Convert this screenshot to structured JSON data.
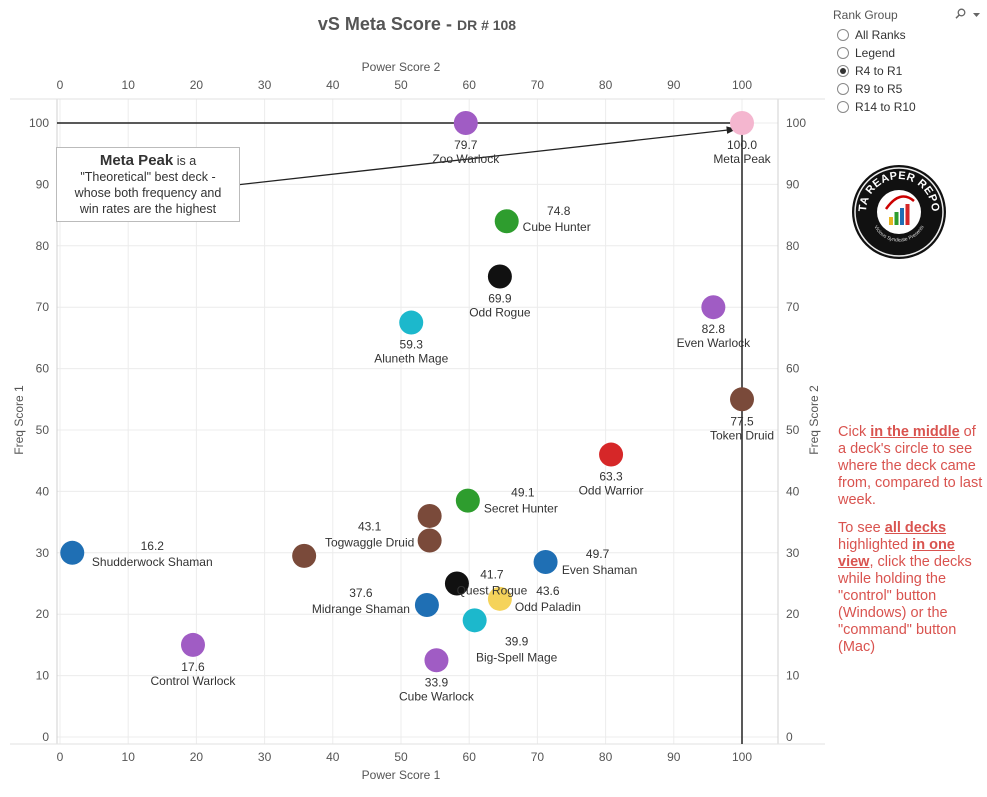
{
  "title": {
    "main": "vS Meta Score",
    "sep": " - ",
    "sub": "DR # 108"
  },
  "colors": {
    "red_text": "#d9534f"
  },
  "filter": {
    "title": "Rank Group",
    "search_icon": "search-icon",
    "menu_icon": "dropdown-caret-icon",
    "options": [
      {
        "label": "All Ranks",
        "selected": false
      },
      {
        "label": "Legend",
        "selected": false
      },
      {
        "label": "R4 to R1",
        "selected": true
      },
      {
        "label": "R9 to R5",
        "selected": false
      },
      {
        "label": "R14 to R10",
        "selected": false
      }
    ]
  },
  "logo": {
    "text": "DATA REAPER REPORT",
    "subtext": "Vicious Syndicate Presents"
  },
  "annotation": {
    "bold": "Meta Peak",
    "line1_rest": " is a",
    "line2": "\"Theoretical\" best deck -",
    "line3": "whose both frequency and",
    "line4": "win rates are the highest"
  },
  "help": {
    "p1_before": "Cick ",
    "p1_bold": "in the middle",
    "p1_after": " of a deck's circle to see where the deck came from, compared to last week.",
    "p2_before": "To see ",
    "p2_bold1": "all decks ",
    "p2_mid": " highlighted ",
    "p2_bold2": "in one view",
    "p2_after": ", click the decks while holding the \"control\" button (Windows) or the \"command\" button (Mac)"
  },
  "chart_data": {
    "type": "scatter",
    "title": "vS Meta Score - DR # 108",
    "xlabel": "Power Score 1",
    "xlabel_top": "Power Score 2",
    "ylabel": "Freq Score 1",
    "ylabel_right": "Freq Score 2",
    "xlim": [
      0,
      105
    ],
    "ylim": [
      -2,
      105
    ],
    "xticks": [
      0,
      10,
      20,
      30,
      40,
      50,
      60,
      70,
      80,
      90,
      100
    ],
    "yticks": [
      0,
      10,
      20,
      30,
      40,
      50,
      60,
      70,
      80,
      90,
      100
    ],
    "grid": true,
    "reference_lines": {
      "x": 100,
      "y": 100
    },
    "points": [
      {
        "name": "Zoo Warlock",
        "score": "79.7",
        "x": 59.5,
        "y": 100,
        "color": "#a05cc4"
      },
      {
        "name": "Meta Peak",
        "score": "100.0",
        "x": 100,
        "y": 100,
        "color": "#f4b6cf"
      },
      {
        "name": "Cube Hunter",
        "score": "74.8",
        "x": 65.5,
        "y": 84,
        "color": "#2e9d2e"
      },
      {
        "name": "Odd Rogue",
        "score": "69.9",
        "x": 64.5,
        "y": 75,
        "color": "#111111"
      },
      {
        "name": "Aluneth Mage",
        "score": "59.3",
        "x": 51.5,
        "y": 67.5,
        "color": "#1cb8cc"
      },
      {
        "name": "Even Warlock",
        "score": "82.8",
        "x": 95.8,
        "y": 70,
        "color": "#a05cc4"
      },
      {
        "name": "Token Druid",
        "score": "77.5",
        "x": 100,
        "y": 55,
        "color": "#7a4a3a"
      },
      {
        "name": "Odd Warrior",
        "score": "63.3",
        "x": 80.8,
        "y": 46,
        "color": "#d62728"
      },
      {
        "name": "Secret Hunter",
        "score": "49.1",
        "x": 59.8,
        "y": 38.5,
        "color": "#2e9d2e"
      },
      {
        "name": "Togwaggle Druid",
        "score": "43.1",
        "x": 54.2,
        "y": 32,
        "color": "#7a4a3a"
      },
      {
        "name": "Togwaggle Druid (2)",
        "score": "",
        "x": 54.2,
        "y": 36,
        "color": "#7a4a3a"
      },
      {
        "name": "Togwaggle Druid (3)",
        "score": "",
        "x": 35.8,
        "y": 29.5,
        "color": "#7a4a3a"
      },
      {
        "name": "Shudderwock Shaman",
        "score": "16.2",
        "x": 1.8,
        "y": 30,
        "color": "#1f6fb4"
      },
      {
        "name": "Quest Rogue",
        "score": "41.7",
        "x": 58.2,
        "y": 25,
        "color": "#111111"
      },
      {
        "name": "Even Shaman",
        "score": "49.7",
        "x": 71.2,
        "y": 28.5,
        "color": "#1f6fb4"
      },
      {
        "name": "Odd Paladin",
        "score": "43.6",
        "x": 64.5,
        "y": 22.5,
        "color": "#f5d35a"
      },
      {
        "name": "Midrange Shaman",
        "score": "37.6",
        "x": 53.8,
        "y": 21.5,
        "color": "#1f6fb4"
      },
      {
        "name": "Big-Spell Mage",
        "score": "39.9",
        "x": 60.8,
        "y": 19,
        "color": "#1cb8cc"
      },
      {
        "name": "Control Warlock",
        "score": "17.6",
        "x": 19.5,
        "y": 15,
        "color": "#a05cc4"
      },
      {
        "name": "Cube Warlock",
        "score": "33.9",
        "x": 55.2,
        "y": 12.5,
        "color": "#a05cc4"
      }
    ]
  }
}
